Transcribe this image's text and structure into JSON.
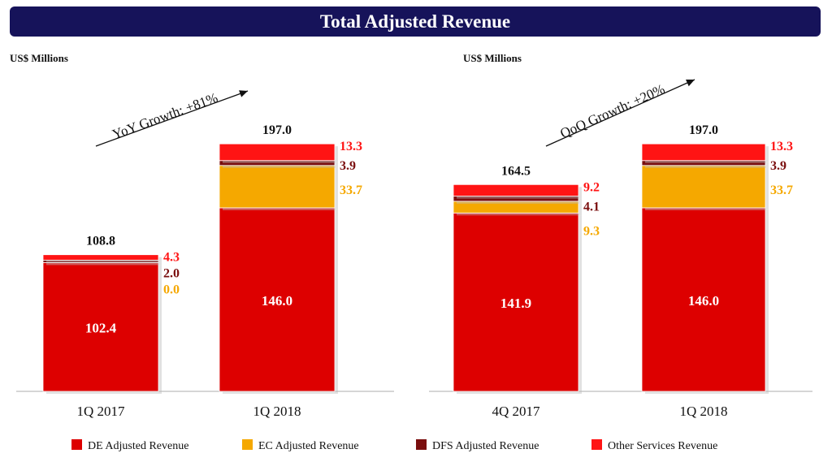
{
  "title": "Total Adjusted Revenue",
  "colors": {
    "banner": "#16135a",
    "de": "#dd0000",
    "ec": "#f5a800",
    "dfs": "#7a0e0e",
    "other": "#ff1414",
    "total_label": "#111111"
  },
  "chart_data": [
    {
      "type": "bar",
      "stacked": true,
      "unit_label": "US$ Millions",
      "growth_label": "YoY Growth:  +81%",
      "categories": [
        "1Q 2017",
        "1Q 2018"
      ],
      "totals": [
        "108.8",
        "197.0"
      ],
      "series": [
        {
          "name": "DE Adjusted Revenue",
          "key": "de",
          "values": [
            102.4,
            146.0
          ],
          "labels": [
            "102.4",
            "146.0"
          ]
        },
        {
          "name": "EC Adjusted Revenue",
          "key": "ec",
          "values": [
            0.0,
            33.7
          ],
          "labels": [
            "0.0",
            "33.7"
          ]
        },
        {
          "name": "DFS Adjusted Revenue",
          "key": "dfs",
          "values": [
            2.0,
            3.9
          ],
          "labels": [
            "2.0",
            "3.9"
          ]
        },
        {
          "name": "Other Services Revenue",
          "key": "other",
          "values": [
            4.3,
            13.3
          ],
          "labels": [
            "4.3",
            "13.3"
          ]
        }
      ],
      "ylim": [
        0,
        197
      ]
    },
    {
      "type": "bar",
      "stacked": true,
      "unit_label": "US$ Millions",
      "growth_label": "QoQ Growth:  +20%",
      "categories": [
        "4Q 2017",
        "1Q 2018"
      ],
      "totals": [
        "164.5",
        "197.0"
      ],
      "series": [
        {
          "name": "DE Adjusted Revenue",
          "key": "de",
          "values": [
            141.9,
            146.0
          ],
          "labels": [
            "141.9",
            "146.0"
          ]
        },
        {
          "name": "EC Adjusted Revenue",
          "key": "ec",
          "values": [
            9.3,
            33.7
          ],
          "labels": [
            "9.3",
            "33.7"
          ]
        },
        {
          "name": "DFS Adjusted Revenue",
          "key": "dfs",
          "values": [
            4.1,
            3.9
          ],
          "labels": [
            "4.1",
            "3.9"
          ]
        },
        {
          "name": "Other Services Revenue",
          "key": "other",
          "values": [
            9.2,
            13.3
          ],
          "labels": [
            "9.2",
            "13.3"
          ]
        }
      ],
      "ylim": [
        0,
        197
      ]
    }
  ],
  "legend": [
    {
      "label": "DE Adjusted Revenue",
      "key": "de"
    },
    {
      "label": "EC Adjusted Revenue",
      "key": "ec"
    },
    {
      "label": "DFS Adjusted Revenue",
      "key": "dfs"
    },
    {
      "label": "Other Services Revenue",
      "key": "other"
    }
  ]
}
